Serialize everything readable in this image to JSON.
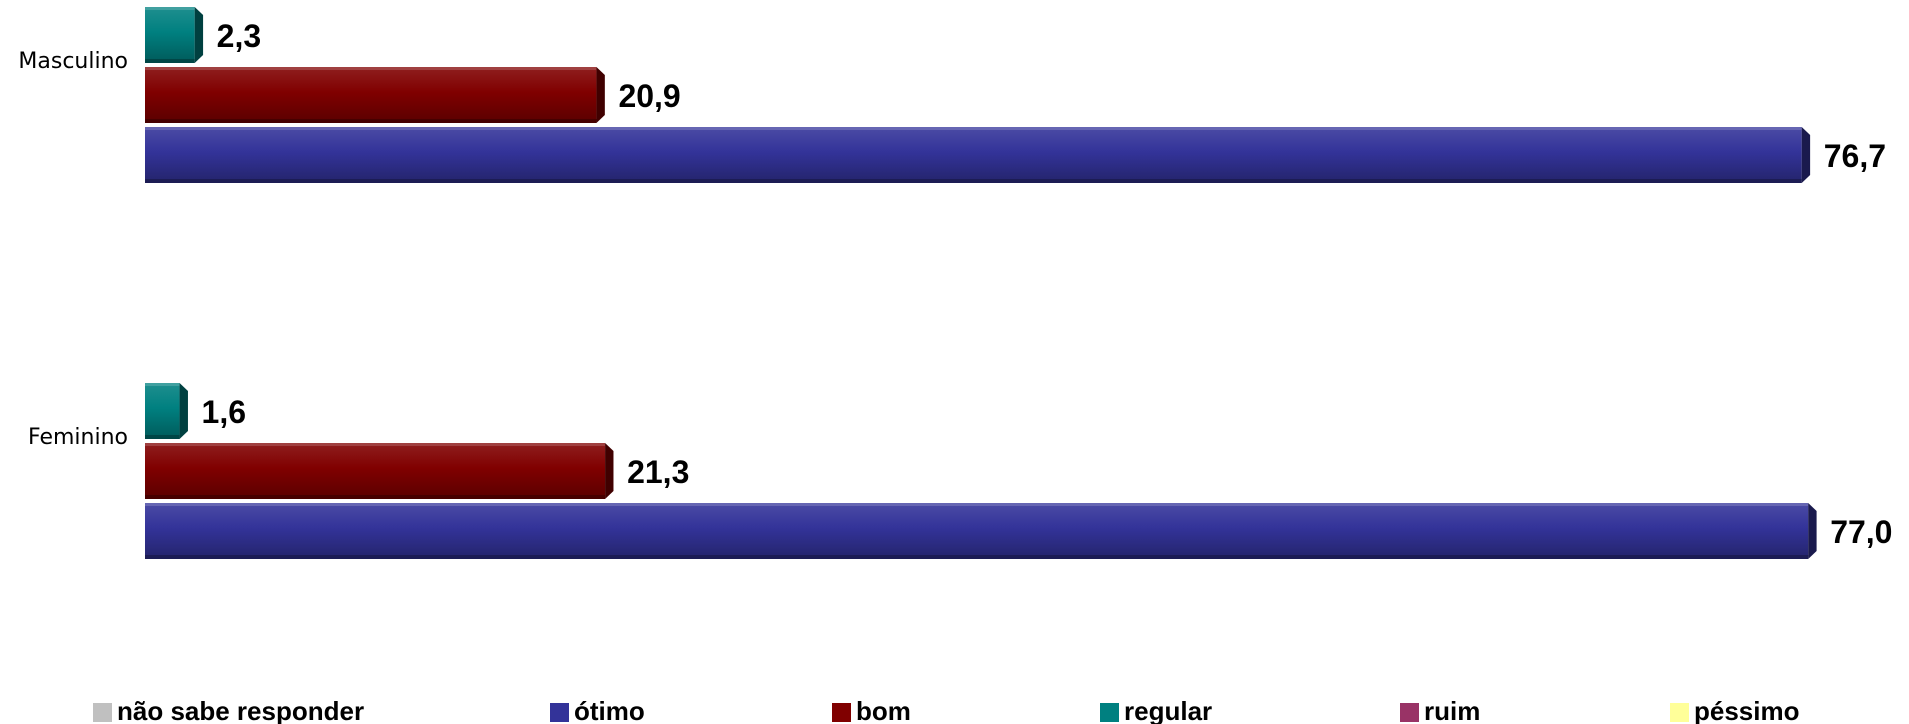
{
  "chart_data": {
    "type": "bar",
    "orientation": "horizontal",
    "style": "3d-cylinder",
    "title": "",
    "xlabel": "",
    "ylabel": "",
    "xlim": [
      0,
      80
    ],
    "grid": false,
    "legend_position": "bottom",
    "categories": [
      "Masculino",
      "Feminino"
    ],
    "series": [
      {
        "name": "não sabe responder",
        "color": "#c0c0c0",
        "values": [
          null,
          null
        ],
        "labels": [
          "",
          ""
        ]
      },
      {
        "name": "ótimo",
        "color": "#333399",
        "values": [
          76.7,
          77.0
        ],
        "labels": [
          "76,7",
          "77,0"
        ]
      },
      {
        "name": "bom",
        "color": "#800000",
        "values": [
          20.9,
          21.3
        ],
        "labels": [
          "20,9",
          "21,3"
        ]
      },
      {
        "name": "regular",
        "color": "#008080",
        "values": [
          2.3,
          1.6
        ],
        "labels": [
          "2,3",
          "1,6"
        ]
      },
      {
        "name": "ruim",
        "color": "#993366",
        "values": [
          null,
          null
        ],
        "labels": [
          "",
          ""
        ]
      },
      {
        "name": "péssimo",
        "color": "#ffff99",
        "values": [
          null,
          null
        ],
        "labels": [
          "",
          ""
        ]
      }
    ]
  }
}
